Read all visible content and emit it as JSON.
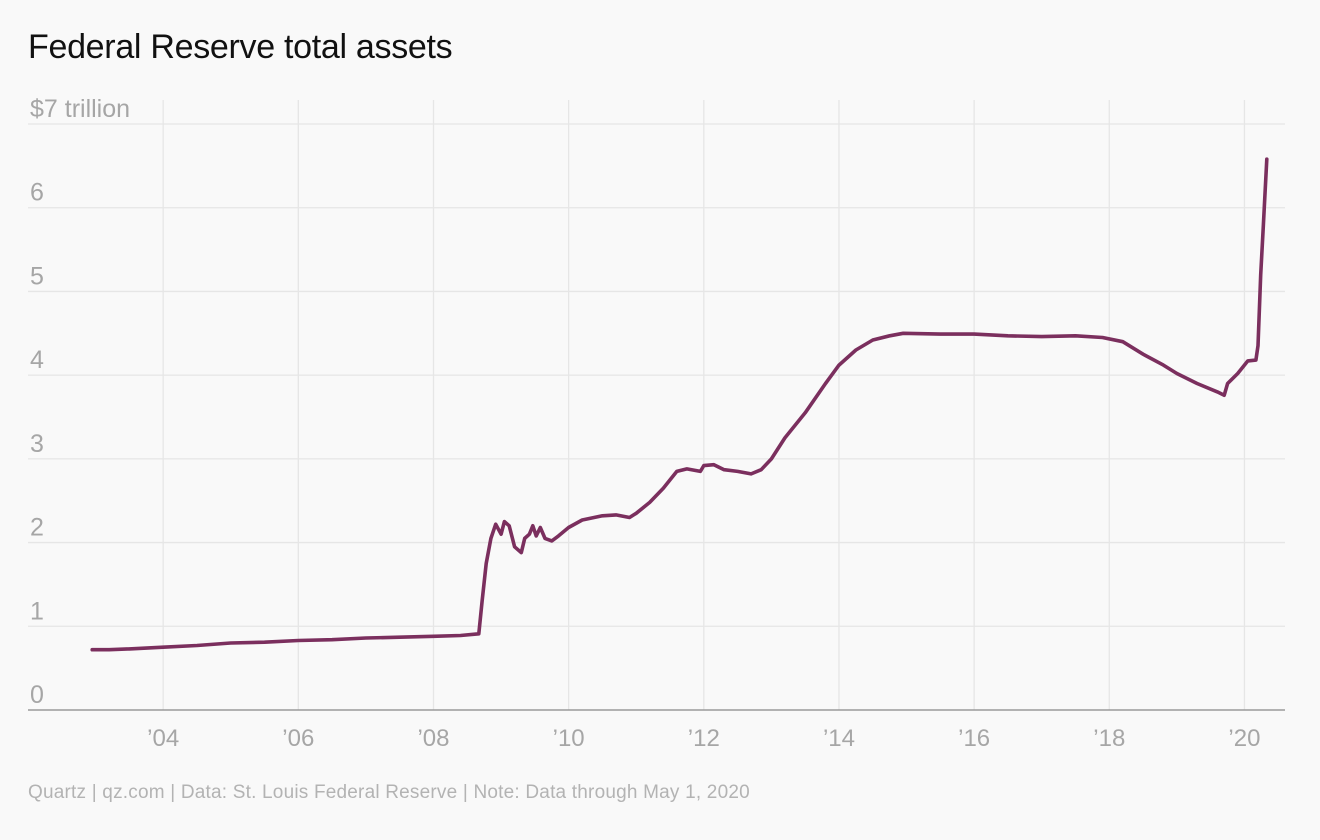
{
  "chart_data": {
    "type": "line",
    "title": "Federal Reserve total assets",
    "xlabel": "",
    "ylabel": "",
    "x_unit": "year",
    "xlim": [
      2002.0,
      2020.6
    ],
    "ylim": [
      0,
      7
    ],
    "y_ticks": [
      {
        "value": 0,
        "label": "0"
      },
      {
        "value": 1,
        "label": "1"
      },
      {
        "value": 2,
        "label": "2"
      },
      {
        "value": 3,
        "label": "3"
      },
      {
        "value": 4,
        "label": "4"
      },
      {
        "value": 5,
        "label": "5"
      },
      {
        "value": 6,
        "label": "6"
      },
      {
        "value": 7,
        "label": "$7 trillion"
      }
    ],
    "x_ticks": [
      {
        "value": 2004,
        "label": "’04"
      },
      {
        "value": 2006,
        "label": "’06"
      },
      {
        "value": 2008,
        "label": "’08"
      },
      {
        "value": 2010,
        "label": "’10"
      },
      {
        "value": 2012,
        "label": "’12"
      },
      {
        "value": 2014,
        "label": "’14"
      },
      {
        "value": 2016,
        "label": "’16"
      },
      {
        "value": 2018,
        "label": "’18"
      },
      {
        "value": 2020,
        "label": "’20"
      }
    ],
    "grid": true,
    "legend": "none",
    "series": [
      {
        "color": "#7b2f5e",
        "points": [
          [
            2002.95,
            0.72
          ],
          [
            2003.2,
            0.72
          ],
          [
            2003.5,
            0.73
          ],
          [
            2004.0,
            0.75
          ],
          [
            2004.5,
            0.77
          ],
          [
            2005.0,
            0.8
          ],
          [
            2005.5,
            0.81
          ],
          [
            2006.0,
            0.83
          ],
          [
            2006.5,
            0.84
          ],
          [
            2007.0,
            0.86
          ],
          [
            2007.5,
            0.87
          ],
          [
            2008.0,
            0.88
          ],
          [
            2008.4,
            0.89
          ],
          [
            2008.67,
            0.91
          ],
          [
            2008.72,
            1.3
          ],
          [
            2008.78,
            1.75
          ],
          [
            2008.85,
            2.05
          ],
          [
            2008.92,
            2.22
          ],
          [
            2009.0,
            2.1
          ],
          [
            2009.05,
            2.25
          ],
          [
            2009.12,
            2.2
          ],
          [
            2009.2,
            1.95
          ],
          [
            2009.3,
            1.88
          ],
          [
            2009.35,
            2.05
          ],
          [
            2009.42,
            2.1
          ],
          [
            2009.47,
            2.2
          ],
          [
            2009.52,
            2.08
          ],
          [
            2009.58,
            2.18
          ],
          [
            2009.65,
            2.05
          ],
          [
            2009.75,
            2.02
          ],
          [
            2009.85,
            2.08
          ],
          [
            2010.0,
            2.18
          ],
          [
            2010.2,
            2.27
          ],
          [
            2010.5,
            2.32
          ],
          [
            2010.7,
            2.33
          ],
          [
            2010.9,
            2.3
          ],
          [
            2011.0,
            2.35
          ],
          [
            2011.2,
            2.48
          ],
          [
            2011.4,
            2.65
          ],
          [
            2011.6,
            2.85
          ],
          [
            2011.75,
            2.88
          ],
          [
            2011.95,
            2.85
          ],
          [
            2012.0,
            2.92
          ],
          [
            2012.15,
            2.93
          ],
          [
            2012.3,
            2.87
          ],
          [
            2012.5,
            2.85
          ],
          [
            2012.7,
            2.82
          ],
          [
            2012.85,
            2.87
          ],
          [
            2013.0,
            3.0
          ],
          [
            2013.2,
            3.25
          ],
          [
            2013.5,
            3.55
          ],
          [
            2013.8,
            3.9
          ],
          [
            2014.0,
            4.12
          ],
          [
            2014.25,
            4.3
          ],
          [
            2014.5,
            4.42
          ],
          [
            2014.75,
            4.47
          ],
          [
            2014.95,
            4.5
          ],
          [
            2015.5,
            4.49
          ],
          [
            2016.0,
            4.49
          ],
          [
            2016.5,
            4.47
          ],
          [
            2017.0,
            4.46
          ],
          [
            2017.5,
            4.47
          ],
          [
            2017.9,
            4.45
          ],
          [
            2018.2,
            4.4
          ],
          [
            2018.5,
            4.25
          ],
          [
            2018.8,
            4.12
          ],
          [
            2019.0,
            4.02
          ],
          [
            2019.3,
            3.9
          ],
          [
            2019.6,
            3.8
          ],
          [
            2019.7,
            3.76
          ],
          [
            2019.75,
            3.9
          ],
          [
            2019.9,
            4.02
          ],
          [
            2020.05,
            4.17
          ],
          [
            2020.17,
            4.18
          ],
          [
            2020.2,
            4.35
          ],
          [
            2020.24,
            5.2
          ],
          [
            2020.28,
            5.8
          ],
          [
            2020.33,
            6.58
          ]
        ]
      }
    ]
  },
  "footer": {
    "source": "Quartz | qz.com | Data: St. Louis Federal Reserve | Note: Data through May 1, 2020"
  }
}
